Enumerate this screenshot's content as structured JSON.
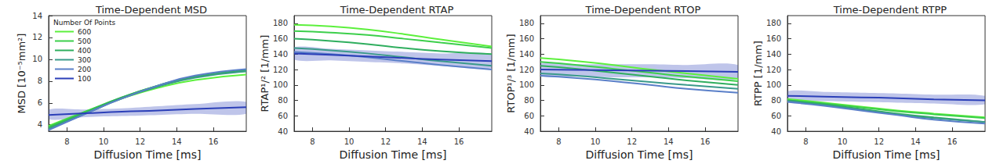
{
  "chart_data": [
    {
      "type": "line",
      "title": "Time-Dependent MSD",
      "x_label": "Diffusion Time [ms]",
      "y_label": "MSD [10⁻⁵mm²]",
      "xlim": [
        7,
        17.8
      ],
      "xticks": [
        8,
        10,
        12,
        14,
        16
      ],
      "ylim": [
        3.4,
        14
      ],
      "yticks": [
        4,
        6,
        8,
        10,
        12,
        14
      ],
      "legend": "upper left",
      "legend_title": "Number Of Points",
      "x": [
        7,
        9,
        11,
        13,
        15,
        17.8
      ],
      "series": [
        {
          "name": "600",
          "color": "#5cf03c",
          "values": [
            3.9,
            5.2,
            6.4,
            7.4,
            8.1,
            8.6
          ]
        },
        {
          "name": "500",
          "color": "#3ccf4b",
          "values": [
            3.8,
            5.2,
            6.5,
            7.6,
            8.4,
            8.9
          ]
        },
        {
          "name": "400",
          "color": "#2fae5e",
          "values": [
            3.7,
            5.1,
            6.5,
            7.6,
            8.4,
            9.0
          ]
        },
        {
          "name": "300",
          "color": "#3a9a8a",
          "values": [
            3.6,
            5.0,
            6.4,
            7.5,
            8.3,
            8.9
          ]
        },
        {
          "name": "200",
          "color": "#5a7fc8",
          "values": [
            3.5,
            5.0,
            6.4,
            7.6,
            8.5,
            9.1
          ]
        },
        {
          "name": "100",
          "color": "#2b3fb8",
          "values": [
            4.9,
            5.05,
            5.2,
            5.3,
            5.45,
            5.6
          ],
          "band_lower": [
            4.5,
            4.7,
            4.8,
            4.9,
            5.0,
            5.0
          ],
          "band_upper": [
            5.4,
            5.4,
            5.5,
            5.7,
            5.9,
            6.1
          ]
        }
      ]
    },
    {
      "type": "line",
      "title": "Time-Dependent RTAP",
      "x_label": "Diffusion Time [ms]",
      "y_label": "RTAP¹/² [1/mm]",
      "xlim": [
        7,
        17.8
      ],
      "xticks": [
        8,
        10,
        12,
        14,
        16
      ],
      "ylim": [
        40,
        190
      ],
      "yticks": [
        40,
        60,
        80,
        100,
        120,
        140,
        160,
        180
      ],
      "x": [
        7,
        9,
        11,
        13,
        15,
        17.8
      ],
      "series": [
        {
          "name": "600",
          "color": "#5cf03c",
          "values": [
            178,
            176,
            172,
            166,
            159,
            150
          ]
        },
        {
          "name": "500",
          "color": "#3ccf4b",
          "values": [
            170,
            168,
            165,
            160,
            155,
            148
          ]
        },
        {
          "name": "400",
          "color": "#2fae5e",
          "values": [
            160,
            157,
            153,
            148,
            144,
            140
          ]
        },
        {
          "name": "300",
          "color": "#3a9a8a",
          "values": [
            148,
            145,
            141,
            136,
            131,
            125
          ]
        },
        {
          "name": "200",
          "color": "#5a7fc8",
          "values": [
            143,
            140,
            136,
            131,
            126,
            120
          ]
        },
        {
          "name": "100",
          "color": "#2b3fb8",
          "values": [
            141,
            139,
            137,
            135,
            133,
            131
          ],
          "band_lower": [
            133,
            132,
            130,
            128,
            125,
            122
          ],
          "band_upper": [
            149,
            147,
            145,
            143,
            141,
            140
          ]
        }
      ]
    },
    {
      "type": "line",
      "title": "Time-Dependent RTOP",
      "x_label": "Diffusion Time [ms]",
      "y_label": "RTOP¹/³ [1/mm]",
      "xlim": [
        7,
        17.8
      ],
      "xticks": [
        8,
        10,
        12,
        14,
        16
      ],
      "ylim": [
        40,
        190
      ],
      "yticks": [
        40,
        60,
        80,
        100,
        120,
        140,
        160,
        180
      ],
      "x": [
        7,
        9,
        11,
        13,
        15,
        17.8
      ],
      "series": [
        {
          "name": "600",
          "color": "#5cf03c",
          "values": [
            135,
            131,
            126,
            120,
            115,
            108
          ]
        },
        {
          "name": "500",
          "color": "#3ccf4b",
          "values": [
            130,
            126,
            121,
            116,
            111,
            105
          ]
        },
        {
          "name": "400",
          "color": "#2fae5e",
          "values": [
            125,
            121,
            116,
            111,
            106,
            100
          ]
        },
        {
          "name": "300",
          "color": "#3a9a8a",
          "values": [
            115,
            112,
            108,
            104,
            100,
            95
          ]
        },
        {
          "name": "200",
          "color": "#5a7fc8",
          "values": [
            112,
            109,
            105,
            100,
            95,
            90
          ]
        },
        {
          "name": "100",
          "color": "#2b3fb8",
          "values": [
            120,
            119.5,
            119,
            118.5,
            118,
            117
          ],
          "band_lower": [
            112,
            111,
            110,
            110,
            109,
            108
          ],
          "band_upper": [
            128,
            127,
            127,
            127,
            126,
            126
          ]
        }
      ]
    },
    {
      "type": "line",
      "title": "Time-Dependent RTPP",
      "x_label": "Diffusion Time [ms]",
      "y_label": "RTPP [1/mm]",
      "xlim": [
        7,
        17.8
      ],
      "xticks": [
        8,
        10,
        12,
        14,
        16
      ],
      "ylim": [
        40,
        190
      ],
      "yticks": [
        40,
        60,
        80,
        100,
        120,
        140,
        160,
        180
      ],
      "x": [
        7,
        9,
        11,
        13,
        15,
        17.8
      ],
      "series": [
        {
          "name": "600",
          "color": "#5cf03c",
          "values": [
            82,
            77,
            72,
            67,
            63,
            58
          ]
        },
        {
          "name": "500",
          "color": "#3ccf4b",
          "values": [
            80,
            76,
            71,
            66,
            62,
            57
          ]
        },
        {
          "name": "400",
          "color": "#2fae5e",
          "values": [
            80,
            75,
            69,
            63,
            58,
            52
          ]
        },
        {
          "name": "300",
          "color": "#3a9a8a",
          "values": [
            79,
            74,
            68,
            62,
            57,
            52
          ]
        },
        {
          "name": "200",
          "color": "#5a7fc8",
          "values": [
            78,
            73,
            67,
            61,
            55,
            50
          ]
        },
        {
          "name": "100",
          "color": "#2b3fb8",
          "values": [
            86,
            85,
            84,
            83,
            81.5,
            80
          ],
          "band_lower": [
            80,
            79,
            78,
            77,
            76,
            75
          ],
          "band_upper": [
            92,
            91,
            90,
            89,
            87.5,
            86
          ]
        }
      ]
    }
  ]
}
